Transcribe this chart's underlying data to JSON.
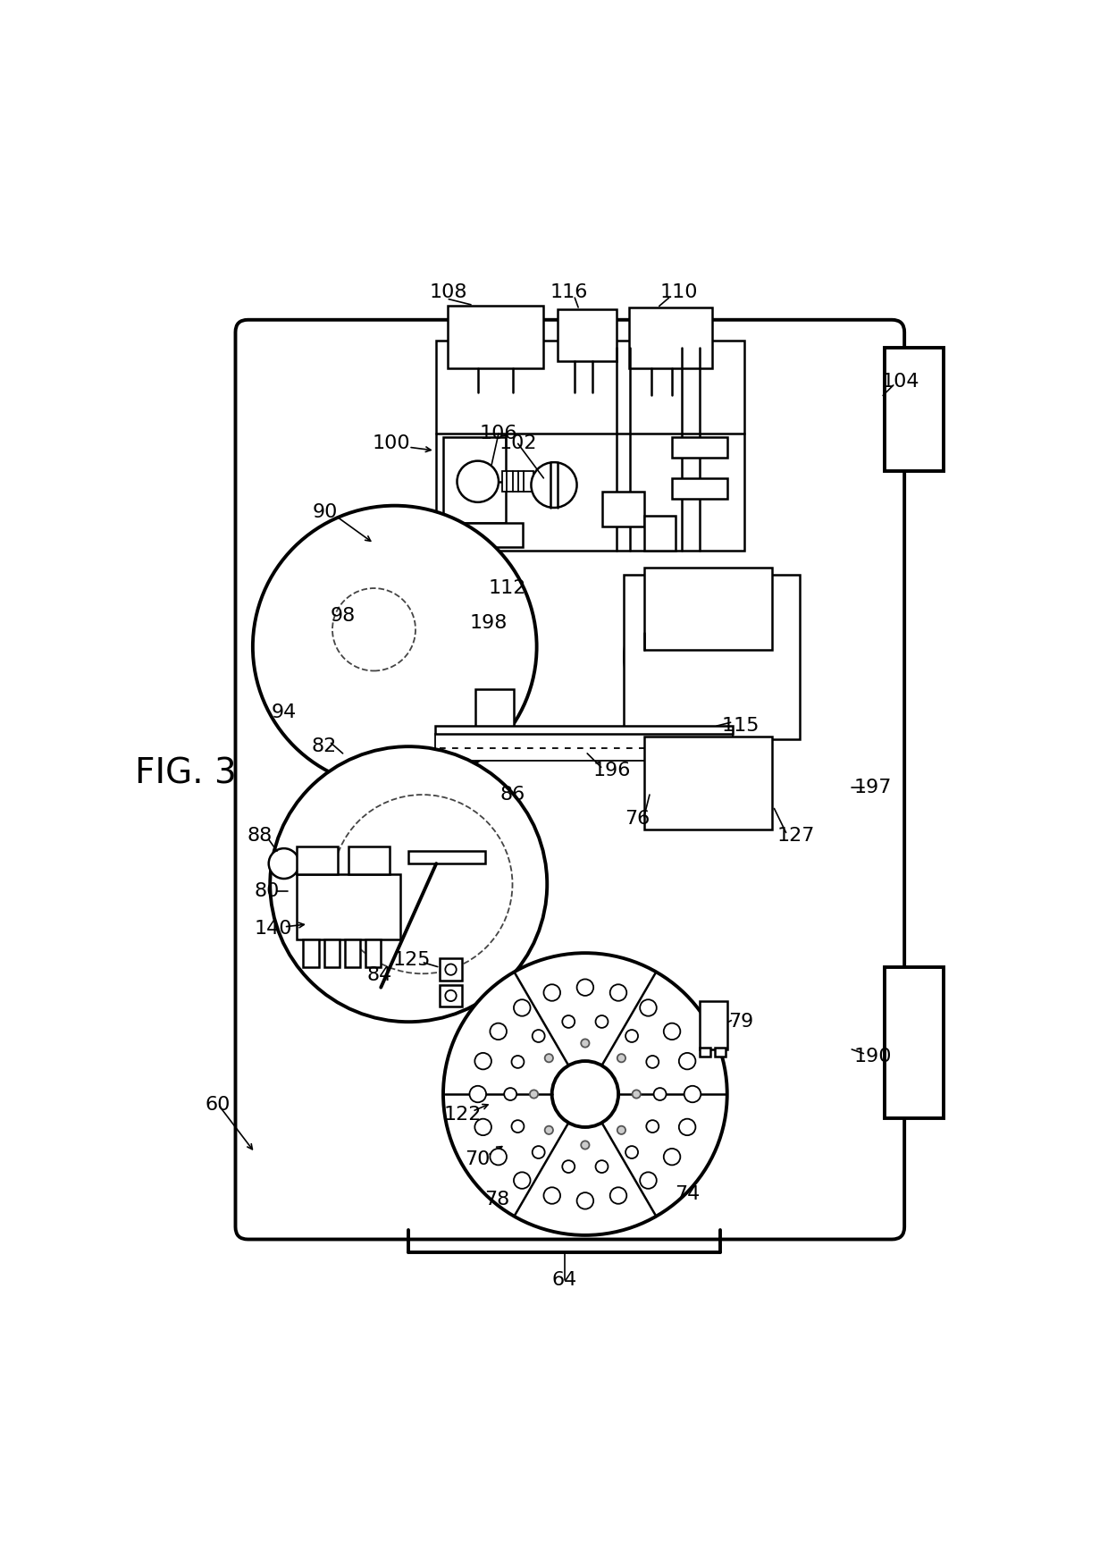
{
  "line_color": "#000000",
  "bg_color": "#ffffff"
}
